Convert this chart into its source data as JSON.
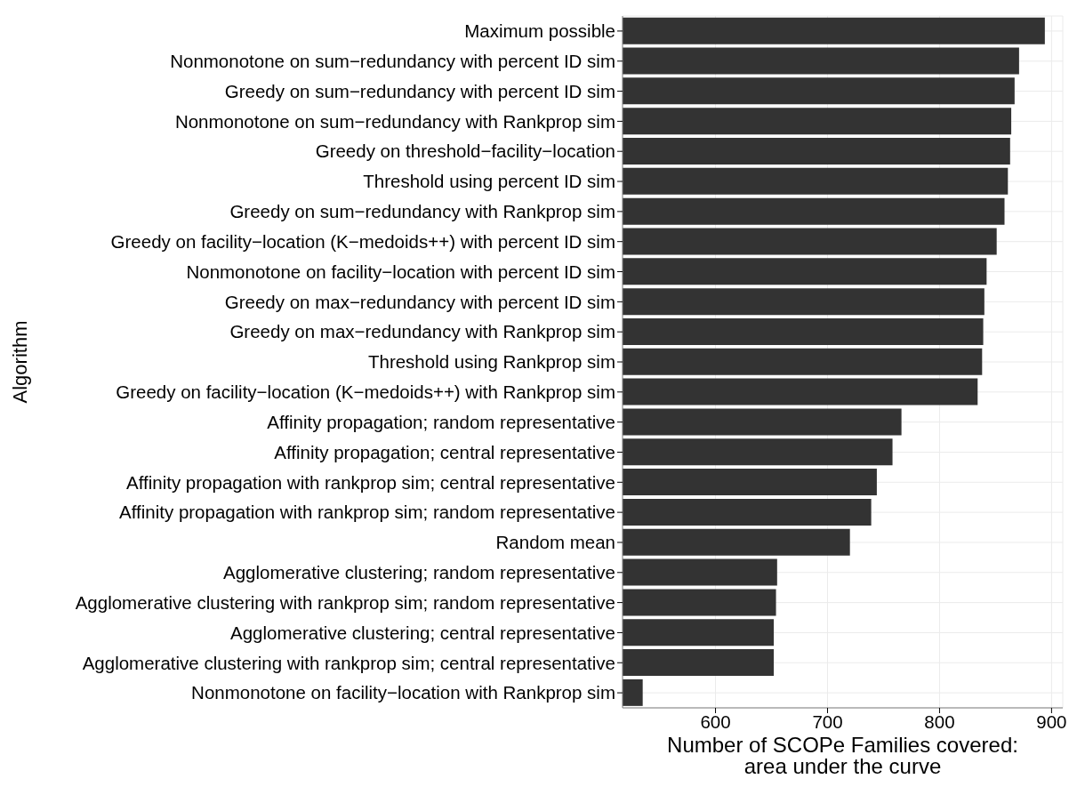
{
  "chart_data": {
    "type": "bar",
    "orientation": "horizontal",
    "xlabel": "Number of SCOPe Families covered:\narea under the curve",
    "ylabel": "Algorithm",
    "categories": [
      "Maximum possible",
      "Nonmonotone on sum−redundancy with percent ID sim",
      "Greedy on sum−redundancy with percent ID sim",
      "Nonmonotone on sum−redundancy with Rankprop sim",
      "Greedy on threshold−facility−location",
      "Threshold using percent ID sim",
      "Greedy on sum−redundancy with Rankprop sim",
      "Greedy on facility−location (K−medoids++) with percent ID sim",
      "Nonmonotone on facility−location with percent ID sim",
      "Greedy on max−redundancy with percent ID sim",
      "Greedy on max−redundancy with Rankprop sim",
      "Threshold using Rankprop sim",
      "Greedy on facility−location (K−medoids++) with Rankprop sim",
      "Affinity propagation; random representative",
      "Affinity propagation; central representative",
      "Affinity propagation with rankprop sim; central representative",
      "Affinity propagation with rankprop sim; random representative",
      "Random mean",
      "Agglomerative clustering; random representative",
      "Agglomerative clustering with rankprop sim; random representative",
      "Agglomerative clustering; central representative",
      "Agglomerative clustering with rankprop sim; central representative",
      "Nonmonotone on facility−location with Rankprop sim"
    ],
    "values": [
      894,
      871,
      867,
      864,
      863,
      861,
      858,
      851,
      842,
      840,
      839,
      838,
      834,
      766,
      758,
      744,
      739,
      720,
      655,
      654,
      652,
      652,
      535
    ],
    "color": "#333333",
    "xlim": [
      517,
      910
    ],
    "xticks": [
      600,
      700,
      800,
      900
    ],
    "grid": true
  }
}
